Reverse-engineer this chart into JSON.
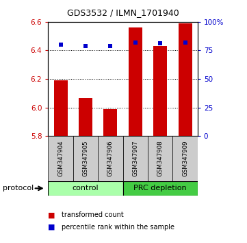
{
  "title": "GDS3532 / ILMN_1701940",
  "categories": [
    "GSM347904",
    "GSM347905",
    "GSM347906",
    "GSM347907",
    "GSM347908",
    "GSM347909"
  ],
  "red_values": [
    6.19,
    6.065,
    5.99,
    6.56,
    6.43,
    6.59
  ],
  "blue_values": [
    80,
    79,
    79,
    82,
    81,
    82
  ],
  "ylim_left": [
    5.8,
    6.6
  ],
  "ylim_right": [
    0,
    100
  ],
  "yticks_left": [
    5.8,
    6.0,
    6.2,
    6.4,
    6.6
  ],
  "yticks_right": [
    0,
    25,
    50,
    75,
    100
  ],
  "ytick_labels_right": [
    "0",
    "25",
    "50",
    "75",
    "100%"
  ],
  "groups": [
    {
      "label": "control",
      "indices": [
        0,
        1,
        2
      ],
      "color": "#AAFFAA"
    },
    {
      "label": "PRC depletion",
      "indices": [
        3,
        4,
        5
      ],
      "color": "#44CC44"
    }
  ],
  "protocol_label": "protocol",
  "legend_red": "transformed count",
  "legend_blue": "percentile rank within the sample",
  "red_color": "#CC0000",
  "blue_color": "#0000CC",
  "bar_bottom": 5.8,
  "blue_marker_size": 5,
  "tick_label_color_left": "#CC0000",
  "tick_label_color_right": "#0000CC"
}
